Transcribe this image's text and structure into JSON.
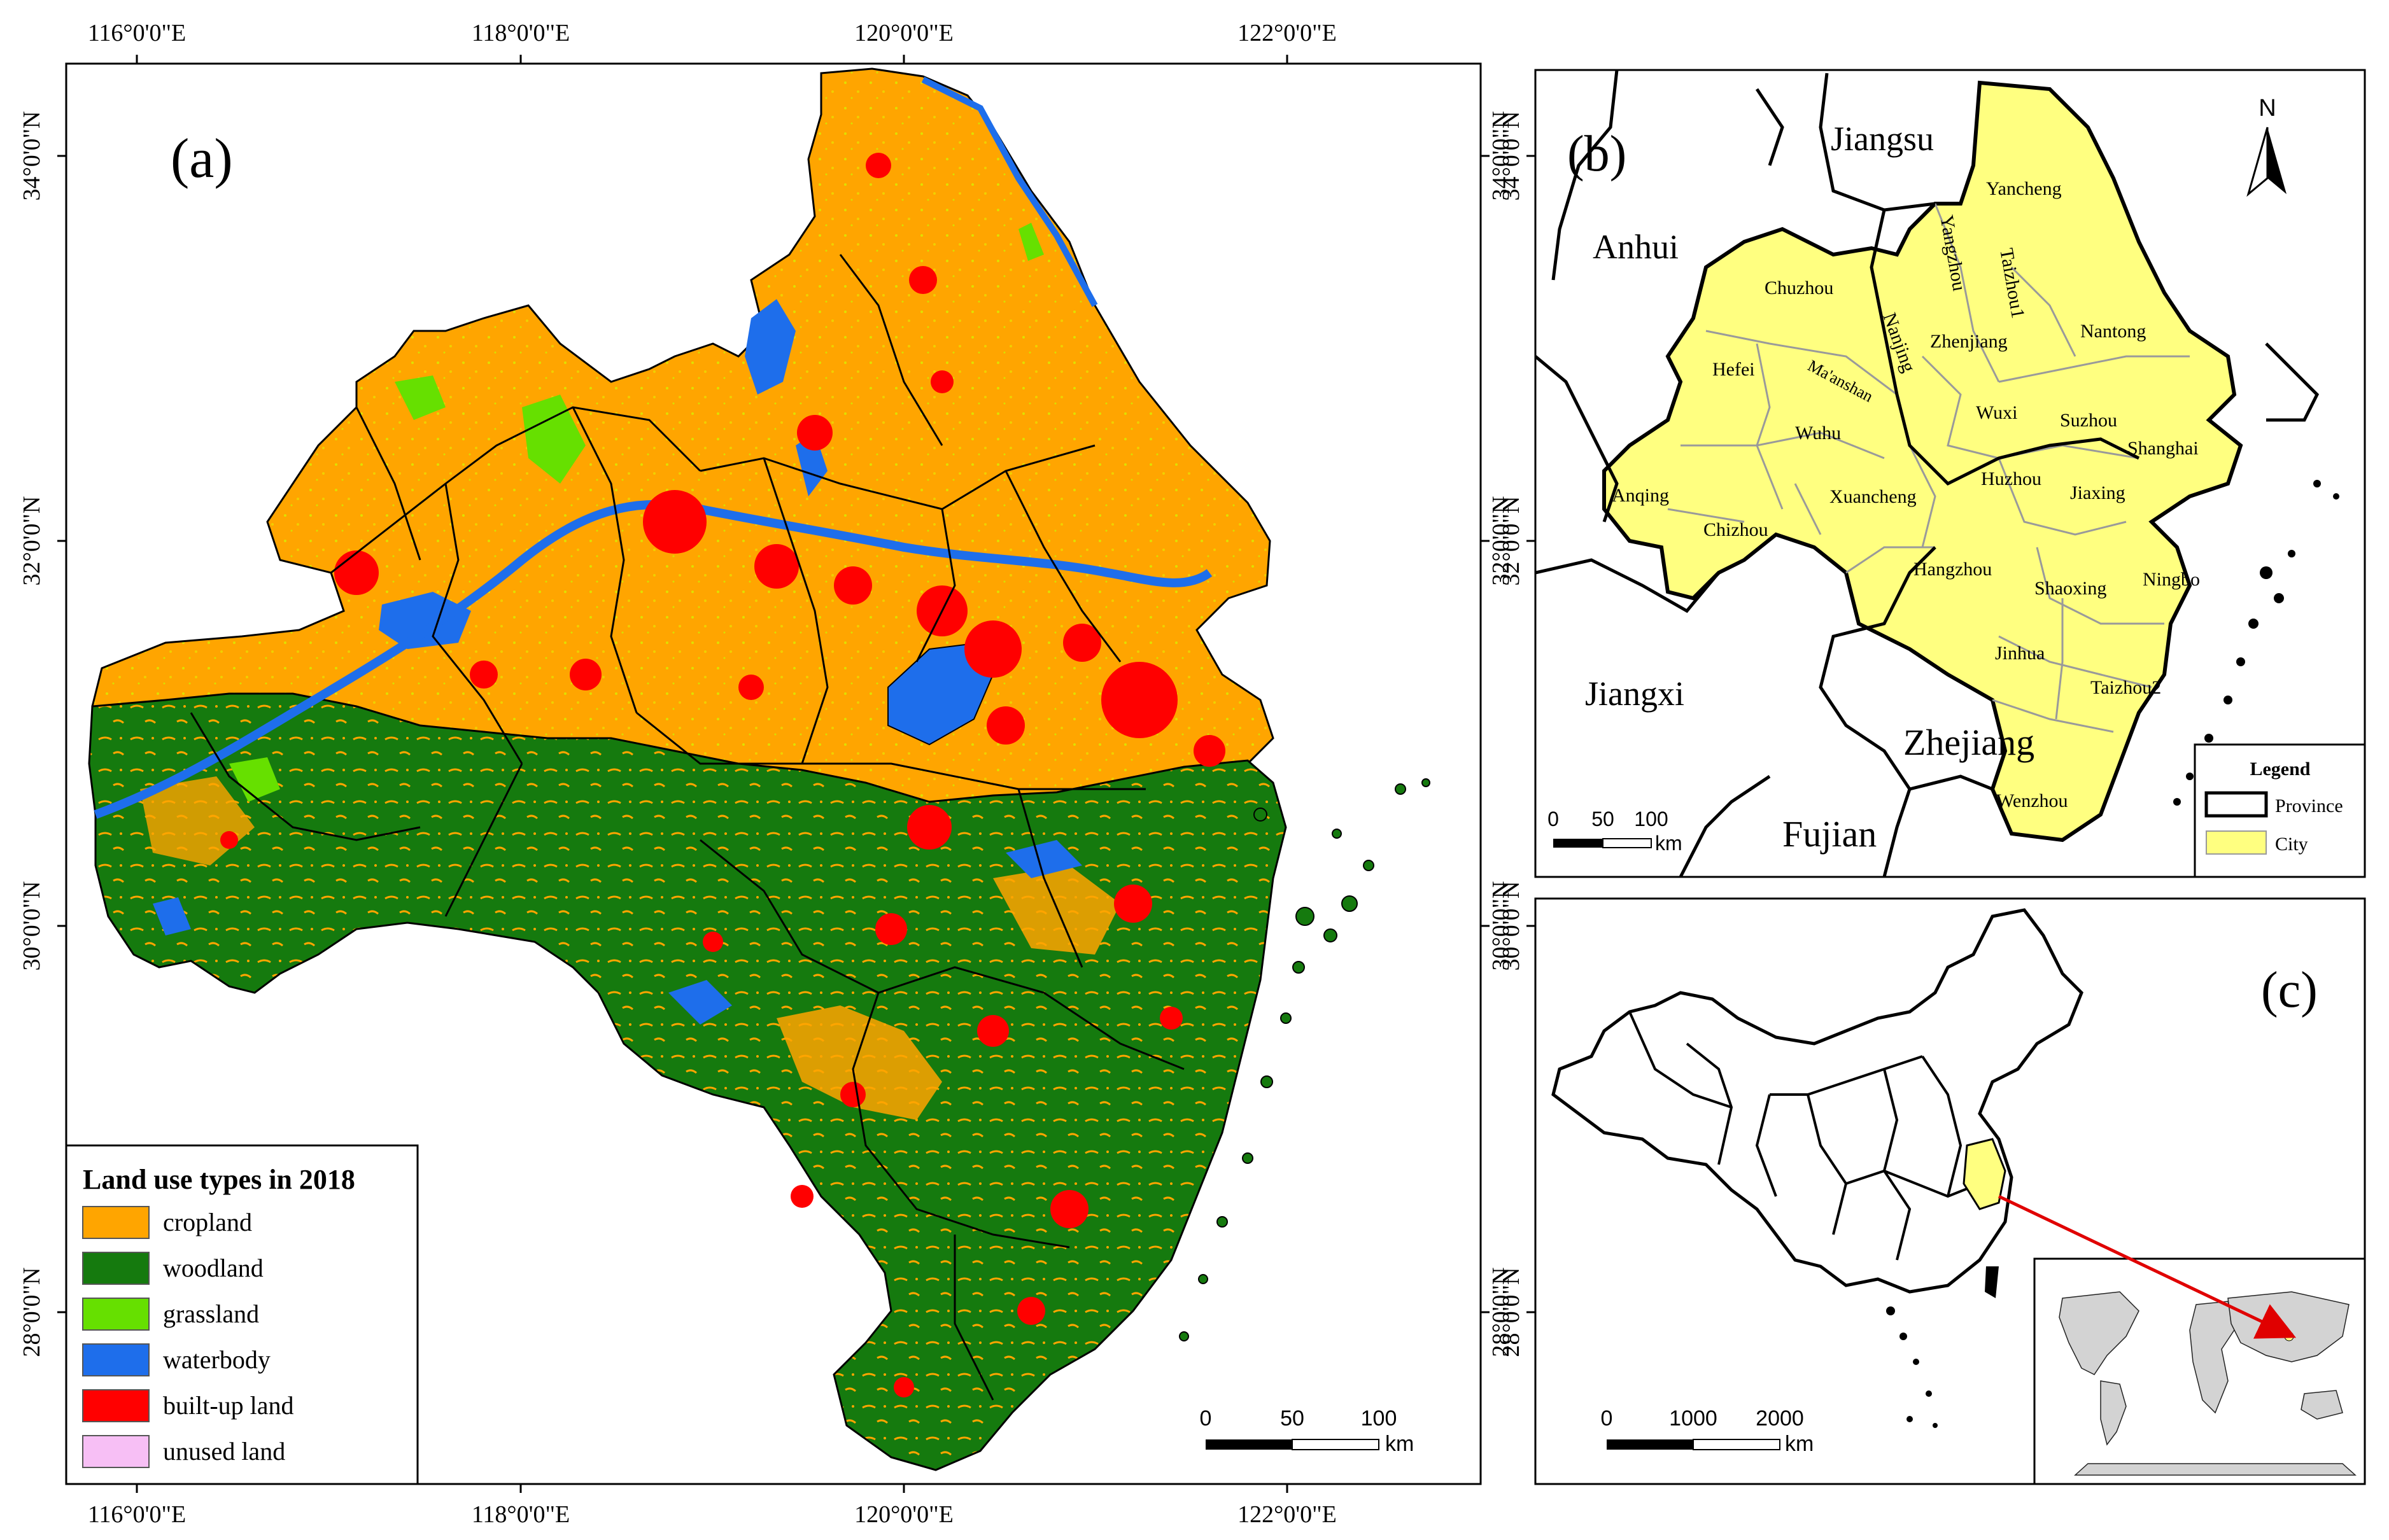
{
  "panel_a": {
    "label": "(a)",
    "lon_ticks": [
      "116°0'0\"E",
      "118°0'0\"E",
      "120°0'0\"E",
      "122°0'0\"E"
    ],
    "lat_ticks": [
      "34°0'0\"N",
      "32°0'0\"N",
      "30°0'0\"N",
      "28°0'0\"N"
    ],
    "legend": {
      "title": "Land use types in 2018",
      "items": [
        {
          "label": "cropland",
          "color": "#FFA500"
        },
        {
          "label": "woodland",
          "color": "#157A0E"
        },
        {
          "label": "grassland",
          "color": "#66E000"
        },
        {
          "label": "waterbody",
          "color": "#1E6EEB"
        },
        {
          "label": "built-up land",
          "color": "#FF0000"
        },
        {
          "label": "unused land",
          "color": "#F7BFF5"
        }
      ]
    },
    "scalebar": {
      "ticks": [
        "0",
        "50",
        "100"
      ],
      "unit": "km"
    }
  },
  "panel_b": {
    "label": "(b)",
    "north": "N",
    "lat_ticks": [
      "34°0'0\"N",
      "32°0'0\"N"
    ],
    "provinces": [
      "Jiangsu",
      "Anhui",
      "Jiangxi",
      "Zhejiang",
      "Fujian"
    ],
    "cities": [
      "Yancheng",
      "Yangzhou",
      "Taizhou1",
      "Chuzhou",
      "Nanjing",
      "Zhenjiang",
      "Nantong",
      "Hefei",
      "Ma'anshan",
      "Wuxi",
      "Suzhou",
      "Shanghai",
      "Wuhu",
      "Anqing",
      "Xuancheng",
      "Huzhou",
      "Jiaxing",
      "Chizhou",
      "Hangzhou",
      "Shaoxing",
      "Ningbo",
      "Jinhua",
      "Taizhou2",
      "Wenzhou"
    ],
    "legend": {
      "title": "Legend",
      "items": [
        {
          "label": "Province"
        },
        {
          "label": "City"
        }
      ]
    },
    "scalebar": {
      "ticks": [
        "0",
        "50",
        "100"
      ],
      "unit": "km"
    },
    "colors": {
      "city_fill": "#FFFF80"
    }
  },
  "panel_c": {
    "label": "(c)",
    "lat_ticks": [
      "30°0'0\"N",
      "28°0'0\"N"
    ],
    "scalebar": {
      "ticks": [
        "0",
        "1000",
        "2000"
      ],
      "unit": "km"
    }
  }
}
